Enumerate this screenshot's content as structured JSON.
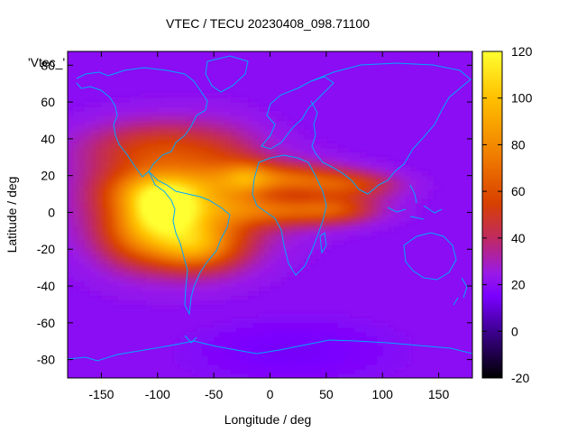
{
  "chart_data": {
    "type": "heatmap",
    "title": "VTEC / TECU 20230408_098.71100",
    "series_label": "'Vtec_'",
    "xlabel": "Longitude / deg",
    "ylabel": "Latitude / deg",
    "xlim": [
      -180,
      180
    ],
    "ylim": [
      -90,
      87.5
    ],
    "xticks": [
      -150,
      -100,
      -50,
      0,
      50,
      100,
      150
    ],
    "yticks": [
      -80,
      -60,
      -40,
      -20,
      0,
      20,
      40,
      60,
      80
    ],
    "colorbar": {
      "min": -20,
      "max": 120,
      "ticks": [
        -20,
        0,
        20,
        40,
        60,
        80,
        100,
        120
      ]
    },
    "palette": [
      "#000000",
      "#3d0090",
      "#7a00ff",
      "#9a1ae6",
      "#c02a60",
      "#d84000",
      "#f07c00",
      "#ffc000",
      "#ffff30"
    ],
    "palette_stops": [
      -20,
      0,
      15,
      25,
      40,
      55,
      75,
      100,
      120
    ],
    "background_level": 20,
    "features": [
      {
        "name": "equatorial anomaly core (South America)",
        "lon": -90,
        "lat": 0,
        "peak": 112
      },
      {
        "name": "northern crest",
        "lon": -95,
        "lat": 12,
        "peak": 95
      },
      {
        "name": "southern crest",
        "lon": -70,
        "lat": -18,
        "peak": 100
      },
      {
        "name": "Atlantic/Africa northern band",
        "lon": 10,
        "lat": 18,
        "peak": 68
      },
      {
        "name": "Atlantic/Africa southern band",
        "lon": 20,
        "lat": 2,
        "peak": 65
      },
      {
        "name": "North America mid-latitude plume",
        "lon": -100,
        "lat": 38,
        "peak": 52
      }
    ],
    "overlay": "continent outlines (cyan)"
  }
}
